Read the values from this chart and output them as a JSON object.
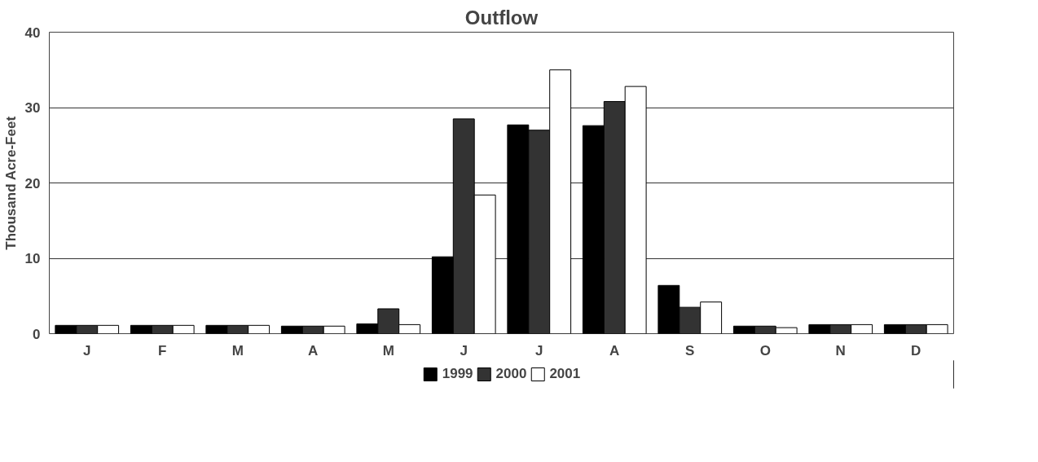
{
  "chart_data": {
    "type": "bar",
    "title": "Outflow",
    "ylabel": "Thousand Acre-Feet",
    "categories": [
      "J",
      "F",
      "M",
      "A",
      "M",
      "J",
      "J",
      "A",
      "S",
      "O",
      "N",
      "D"
    ],
    "series": [
      {
        "name": "1999",
        "color": "#000000",
        "values": [
          1.1,
          1.1,
          1.1,
          1.0,
          1.3,
          10.2,
          27.7,
          27.6,
          6.4,
          1.0,
          1.2,
          1.2
        ]
      },
      {
        "name": "2000",
        "color": "#333333",
        "values": [
          1.1,
          1.1,
          1.1,
          1.0,
          3.3,
          28.5,
          27.0,
          30.8,
          3.5,
          1.0,
          1.2,
          1.2
        ]
      },
      {
        "name": "2001",
        "color": "#ffffff",
        "values": [
          1.1,
          1.1,
          1.1,
          1.0,
          1.2,
          18.4,
          35.0,
          32.8,
          4.2,
          0.8,
          1.2,
          1.2
        ]
      }
    ],
    "ylim": [
      0,
      40
    ],
    "yticks": [
      0,
      10,
      20,
      30,
      40
    ],
    "grid": "y",
    "legend": "bottom"
  }
}
